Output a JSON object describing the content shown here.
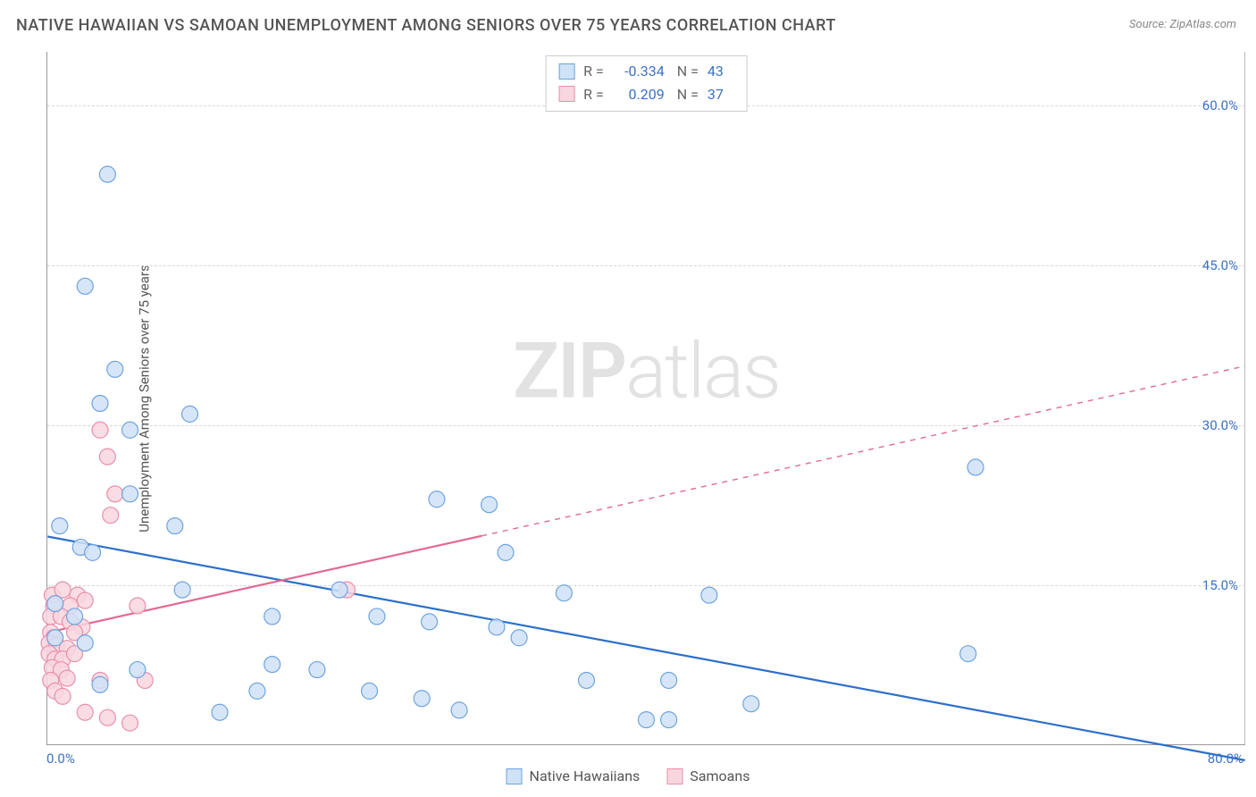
{
  "title": "NATIVE HAWAIIAN VS SAMOAN UNEMPLOYMENT AMONG SENIORS OVER 75 YEARS CORRELATION CHART",
  "source": "Source: ZipAtlas.com",
  "ylabel": "Unemployment Among Seniors over 75 years",
  "watermark_bold": "ZIP",
  "watermark_rest": "atlas",
  "chart": {
    "type": "scatter",
    "xlim": [
      0,
      80
    ],
    "ylim": [
      0,
      65
    ],
    "xtick_min": {
      "val": 0,
      "label": "0.0%"
    },
    "xtick_max": {
      "val": 80,
      "label": "80.0%"
    },
    "yticks": [
      {
        "val": 15,
        "label": "15.0%"
      },
      {
        "val": 30,
        "label": "30.0%"
      },
      {
        "val": 45,
        "label": "45.0%"
      },
      {
        "val": 60,
        "label": "60.0%"
      }
    ],
    "grid_color": "#d8d8d8",
    "background_color": "#ffffff",
    "marker_radius": 9,
    "marker_stroke_width": 1.2,
    "series": [
      {
        "name": "Native Hawaiians",
        "fill": "#cfe2f7",
        "stroke": "#6fa3dd",
        "line_color": "#2c6fc9",
        "R": "-0.334",
        "N": "43",
        "trend": {
          "x1": 0,
          "y1": 19.5,
          "x2": 80,
          "y2": -1.5,
          "solid_until_x": 80
        },
        "points": [
          [
            4.0,
            53.5
          ],
          [
            2.5,
            43.0
          ],
          [
            4.5,
            35.2
          ],
          [
            3.5,
            32.0
          ],
          [
            9.5,
            31.0
          ],
          [
            5.5,
            29.5
          ],
          [
            62.0,
            26.0
          ],
          [
            5.5,
            23.5
          ],
          [
            26.0,
            23.0
          ],
          [
            29.5,
            22.5
          ],
          [
            8.5,
            20.5
          ],
          [
            0.8,
            20.5
          ],
          [
            2.2,
            18.5
          ],
          [
            30.6,
            18.0
          ],
          [
            3.0,
            18.0
          ],
          [
            9.0,
            14.5
          ],
          [
            19.5,
            14.5
          ],
          [
            34.5,
            14.2
          ],
          [
            44.2,
            14.0
          ],
          [
            0.5,
            13.2
          ],
          [
            1.8,
            12.0
          ],
          [
            15.0,
            12.0
          ],
          [
            22.0,
            12.0
          ],
          [
            25.5,
            11.5
          ],
          [
            30.0,
            11.0
          ],
          [
            31.5,
            10.0
          ],
          [
            0.5,
            10.0
          ],
          [
            2.5,
            9.5
          ],
          [
            61.5,
            8.5
          ],
          [
            6.0,
            7.0
          ],
          [
            15.0,
            7.5
          ],
          [
            18.0,
            7.0
          ],
          [
            3.5,
            5.6
          ],
          [
            14.0,
            5.0
          ],
          [
            21.5,
            5.0
          ],
          [
            36.0,
            6.0
          ],
          [
            41.5,
            6.0
          ],
          [
            47.0,
            3.8
          ],
          [
            25.0,
            4.3
          ],
          [
            11.5,
            3.0
          ],
          [
            27.5,
            3.2
          ],
          [
            40.0,
            2.3
          ],
          [
            41.5,
            2.3
          ]
        ]
      },
      {
        "name": "Samoans",
        "fill": "#f8d6df",
        "stroke": "#e98fab",
        "line_color": "#e36a8f",
        "R": "0.209",
        "N": "37",
        "trend": {
          "x1": 0,
          "y1": 10.5,
          "x2": 80,
          "y2": 35.5,
          "solid_until_x": 29
        },
        "points": [
          [
            3.5,
            29.5
          ],
          [
            4.0,
            27.0
          ],
          [
            4.5,
            23.5
          ],
          [
            4.2,
            21.5
          ],
          [
            20.0,
            14.5
          ],
          [
            0.3,
            14.0
          ],
          [
            1.0,
            14.5
          ],
          [
            2.0,
            14.0
          ],
          [
            0.4,
            13.0
          ],
          [
            1.5,
            13.0
          ],
          [
            2.5,
            13.5
          ],
          [
            6.0,
            13.0
          ],
          [
            0.2,
            12.0
          ],
          [
            0.9,
            12.0
          ],
          [
            1.5,
            11.5
          ],
          [
            2.3,
            11.0
          ],
          [
            0.2,
            10.5
          ],
          [
            0.4,
            10.0
          ],
          [
            1.8,
            10.5
          ],
          [
            0.1,
            9.5
          ],
          [
            0.6,
            9.3
          ],
          [
            1.3,
            9.0
          ],
          [
            0.1,
            8.5
          ],
          [
            0.5,
            8.0
          ],
          [
            1.0,
            8.0
          ],
          [
            1.8,
            8.5
          ],
          [
            0.3,
            7.2
          ],
          [
            0.9,
            7.0
          ],
          [
            0.2,
            6.0
          ],
          [
            1.3,
            6.2
          ],
          [
            3.5,
            6.0
          ],
          [
            6.5,
            6.0
          ],
          [
            0.5,
            5.0
          ],
          [
            1.0,
            4.5
          ],
          [
            2.5,
            3.0
          ],
          [
            4.0,
            2.5
          ],
          [
            5.5,
            2.0
          ]
        ]
      }
    ]
  }
}
